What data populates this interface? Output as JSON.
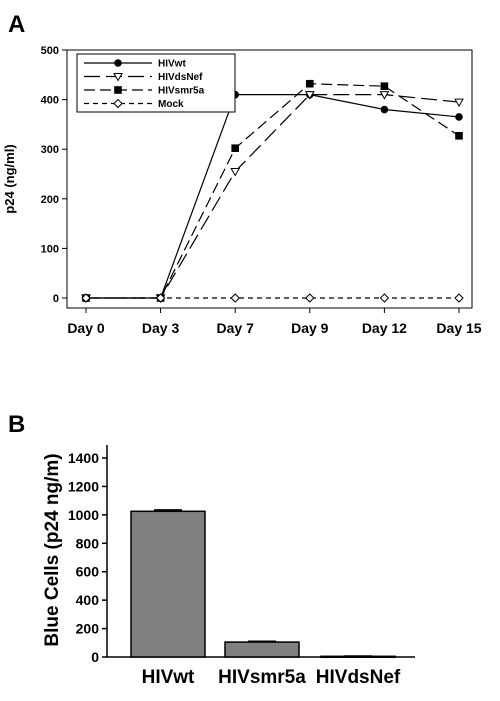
{
  "chart_data": [
    {
      "panel": "A",
      "type": "line",
      "ylabel": "p24 (ng/ml)",
      "xlabel": "",
      "categories": [
        "Day 0",
        "Day 3",
        "Day 7",
        "Day 9",
        "Day 12",
        "Day 15"
      ],
      "ylim": [
        0,
        500
      ],
      "yticks": [
        "0",
        "100",
        "200",
        "300",
        "400",
        "500"
      ],
      "legend_position": "top-left",
      "series": [
        {
          "name": "HIVwt",
          "marker": "circle-filled",
          "dash": "solid",
          "values": [
            0,
            0,
            410,
            410,
            380,
            365
          ]
        },
        {
          "name": "HIVdsNef",
          "marker": "triangle-down-open",
          "dash": "long-dash",
          "values": [
            0,
            0,
            255,
            410,
            410,
            395
          ]
        },
        {
          "name": "HIVsmr5a",
          "marker": "square-filled",
          "dash": "dash",
          "values": [
            0,
            0,
            302,
            432,
            427,
            327
          ]
        },
        {
          "name": "Mock",
          "marker": "diamond-open",
          "dash": "short-dash",
          "values": [
            0,
            0,
            0,
            0,
            0,
            0
          ]
        }
      ]
    },
    {
      "panel": "B",
      "type": "bar",
      "ylabel": "Blue Cells (p24 ng/m)",
      "xlabel": "",
      "categories": [
        "HIVwt",
        "HIVsmr5a",
        "HIVdsNef"
      ],
      "values": [
        1025,
        105,
        5
      ],
      "errors": [
        10,
        6,
        2
      ],
      "ylim": [
        0,
        1400
      ],
      "yticks": [
        "0",
        "200",
        "400",
        "600",
        "800",
        "1000",
        "1200",
        "1400"
      ],
      "bar_color": "#808080"
    }
  ]
}
